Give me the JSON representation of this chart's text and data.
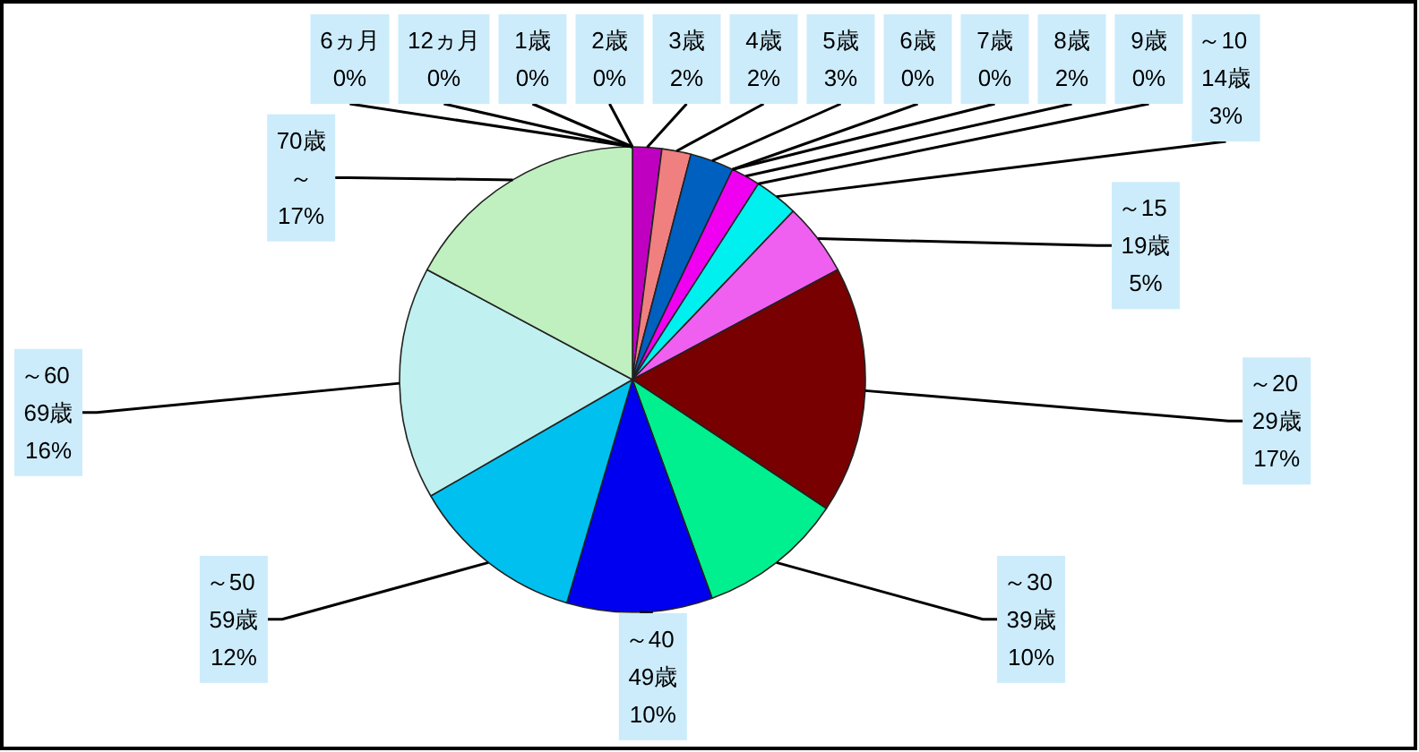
{
  "chart_data": {
    "type": "pie",
    "categories": [
      "6ヵ月",
      "12ヵ月",
      "1歳",
      "2歳",
      "3歳",
      "4歳",
      "5歳",
      "6歳",
      "7歳",
      "8歳",
      "9歳",
      "～10 14歳",
      "～15 19歳",
      "～20 29歳",
      "～30 39歳",
      "～40 49歳",
      "～50 59歳",
      "～60 69歳",
      "70歳～"
    ],
    "values": [
      0,
      0,
      0,
      0,
      2,
      2,
      3,
      0,
      0,
      2,
      0,
      3,
      5,
      17,
      10,
      10,
      12,
      16,
      17
    ],
    "value_labels": [
      "0%",
      "0%",
      "0%",
      "0%",
      "2%",
      "2%",
      "3%",
      "0%",
      "0%",
      "2%",
      "0%",
      "3%",
      "5%",
      "17%",
      "10%",
      "10%",
      "12%",
      "16%",
      "17%"
    ],
    "colors": [
      null,
      null,
      null,
      null,
      "#c000c0",
      "#f08080",
      "#0060c0",
      null,
      null,
      "#f000f0",
      null,
      "#00f0f0",
      "#f060f0",
      "#780000",
      "#00f090",
      "#0000f0",
      "#00c0f0",
      "#c0f0f0",
      "#c0f0c0"
    ]
  }
}
